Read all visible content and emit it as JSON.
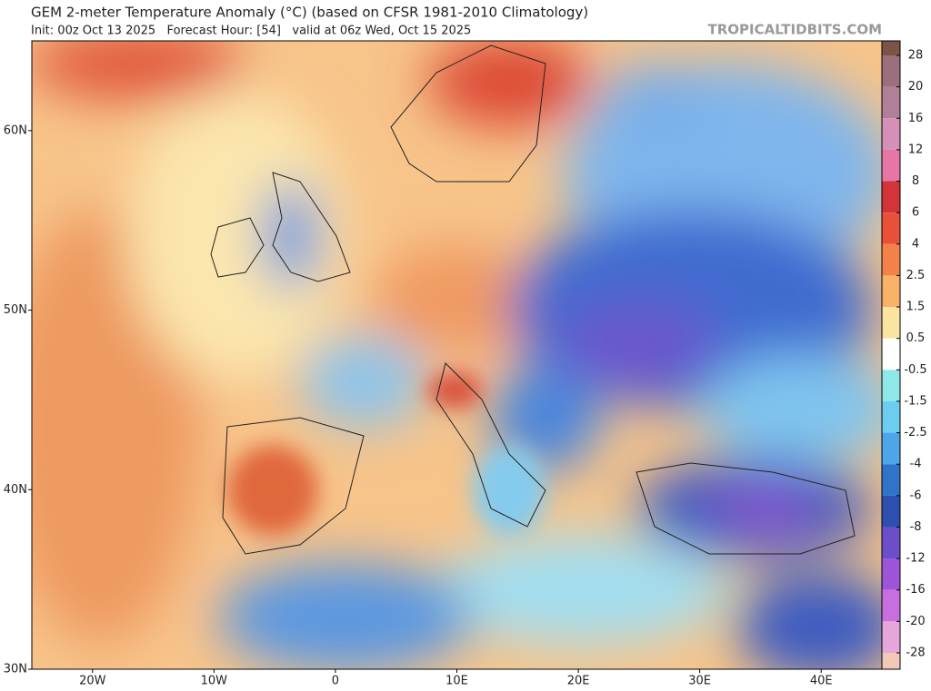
{
  "header": {
    "title": "GEM 2-meter Temperature Anomaly (°C) (based on CFSR 1981-2010 Climatology)",
    "subtitle": "Init: 00z Oct 13 2025   Forecast Hour: [54]   valid at 06z Wed, Oct 15 2025",
    "watermark": "TROPICALTIDBITS.COM"
  },
  "map": {
    "xlim": [
      -25,
      45
    ],
    "ylim": [
      30,
      65
    ],
    "xticks": [
      {
        "value": -20,
        "label": "20W"
      },
      {
        "value": -10,
        "label": "10W"
      },
      0,
      {
        "value": 10,
        "label": "10E"
      },
      {
        "value": 20,
        "label": "20E"
      },
      {
        "value": 30,
        "label": "30E"
      },
      {
        "value": 40,
        "label": "40E"
      }
    ],
    "yticks": [
      {
        "value": 30,
        "label": "30N"
      },
      {
        "value": 40,
        "label": "40N"
      },
      {
        "value": 50,
        "label": "50N"
      },
      {
        "value": 60,
        "label": "60N"
      }
    ]
  },
  "colorbar": {
    "levels": [
      28,
      20,
      16,
      12,
      8,
      6,
      4,
      2.5,
      1.5,
      0.5,
      -0.5,
      -1.5,
      -2.5,
      -4,
      -6,
      -8,
      -12,
      -16,
      -20,
      -28
    ],
    "colors": [
      "#7a5548",
      "#9c6f7d",
      "#b07f98",
      "#d68fb9",
      "#e676a6",
      "#d2343a",
      "#e8503a",
      "#f3824a",
      "#f7b267",
      "#fbe3a0",
      "#ffffff",
      "#8ee8e8",
      "#6ccdee",
      "#4ea6e8",
      "#2f74c8",
      "#2e4fb0",
      "#6a4fc8",
      "#9b55d6",
      "#c86fe0",
      "#e6a6dc",
      "#f1c9b7"
    ]
  }
}
